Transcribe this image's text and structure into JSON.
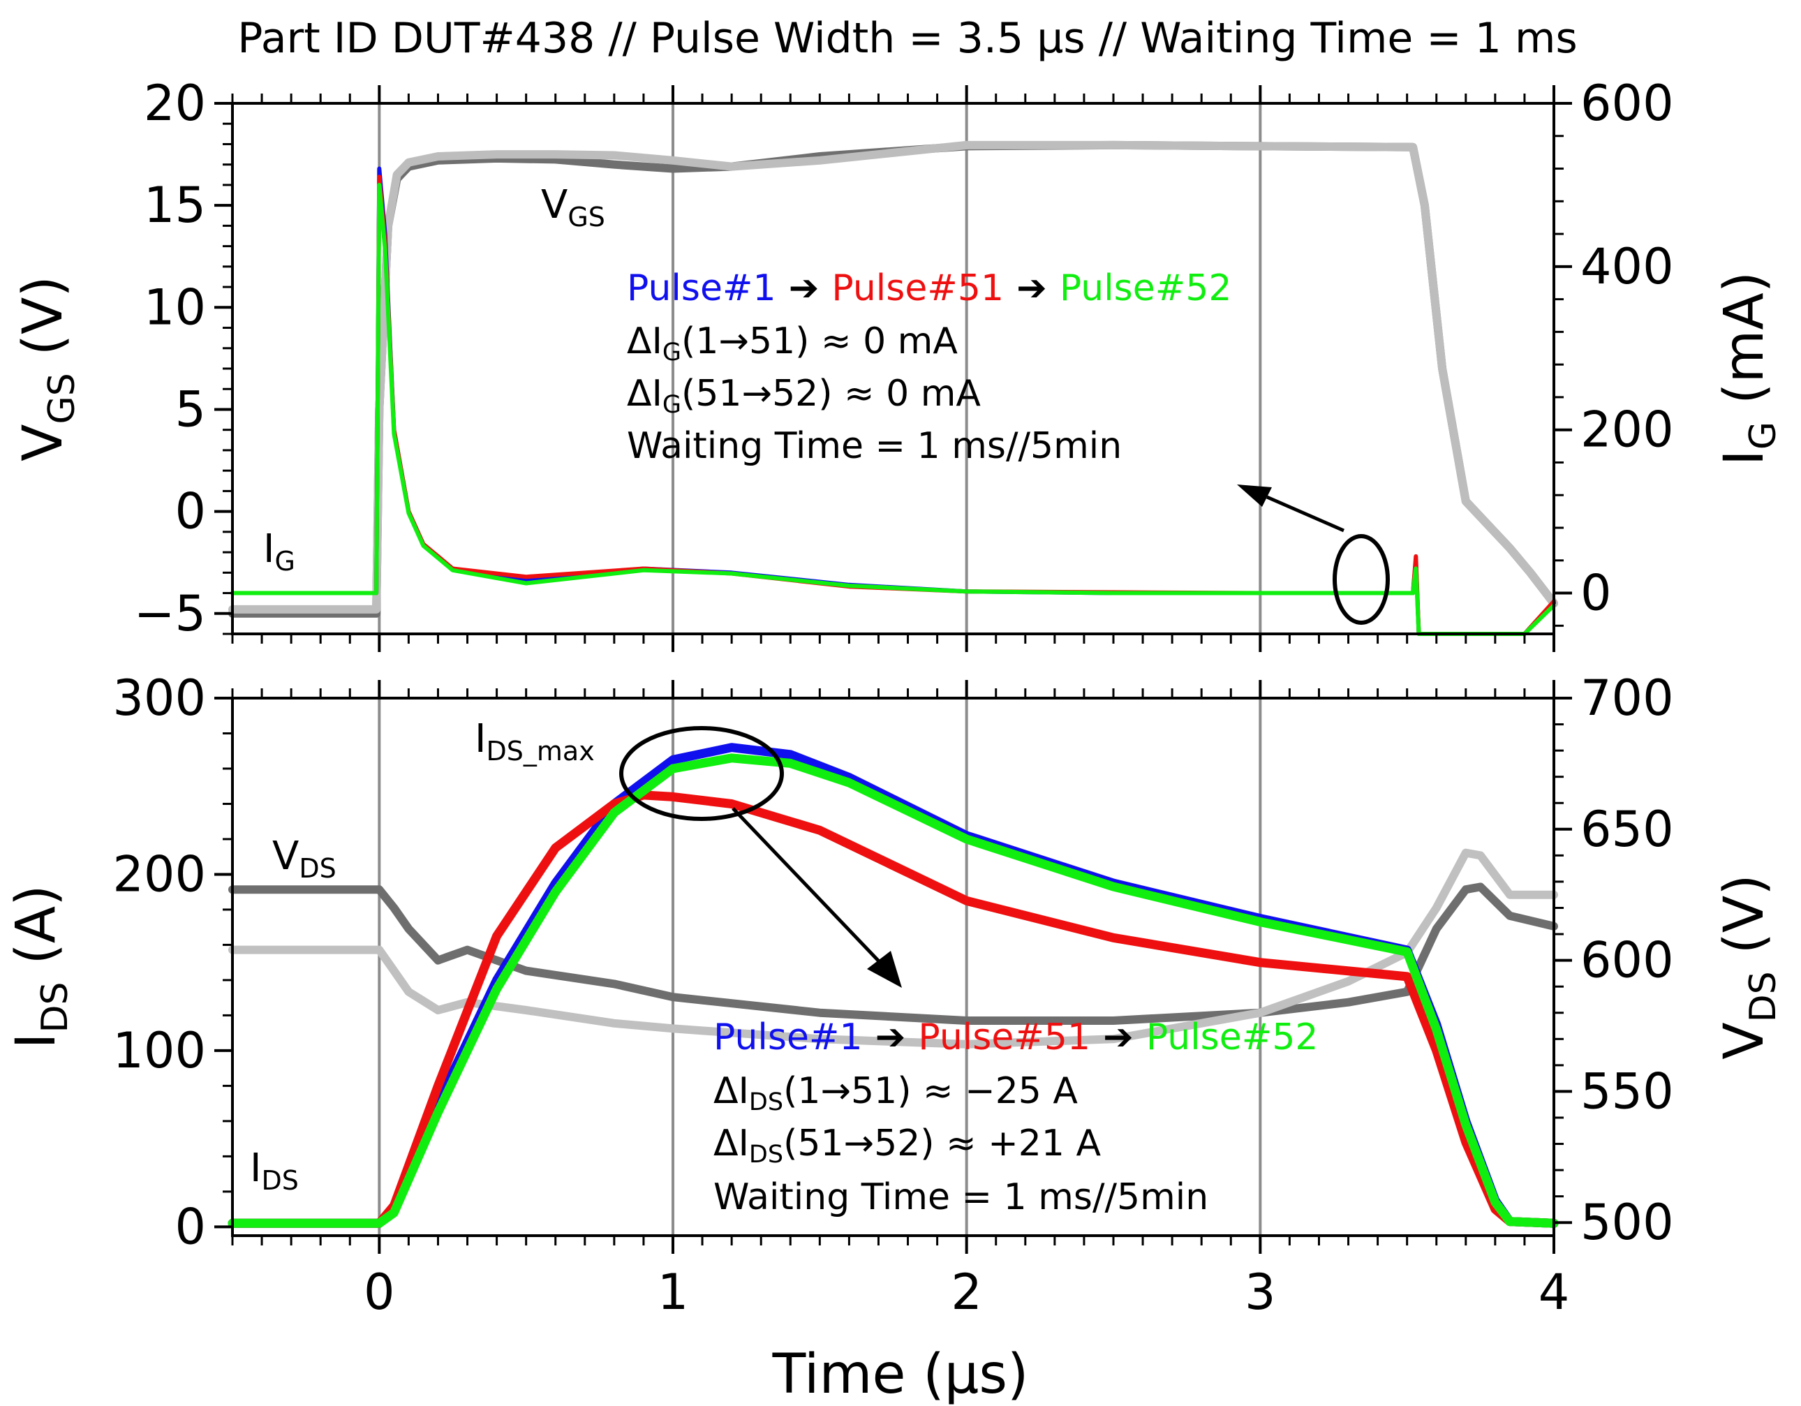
{
  "title": "Part ID DUT#438 // Pulse Width = 3.5 µs // Waiting Time = 1 ms",
  "colors": {
    "pulse1": "#1010ee",
    "pulse51": "#ee1010",
    "pulse52": "#10ee10",
    "vgs_a": "#6f6f6f",
    "vgs_b": "#bdbdbd",
    "vds_a": "#6e6e6e",
    "vds_b": "#c0c0c0",
    "grid": "#8c8c8c"
  },
  "chart_data": [
    {
      "type": "line",
      "panel": "top",
      "x_range": [
        -0.5,
        4
      ],
      "x_ticks": [
        "0",
        "1",
        "2",
        "3",
        "4"
      ],
      "y_left": {
        "label_main": "V",
        "label_sub": "GS",
        "label_unit": " (V)",
        "range": [
          -6,
          20
        ],
        "ticks": [
          "−5",
          "0",
          "5",
          "10",
          "15",
          "20"
        ]
      },
      "y_right": {
        "label_main": "I",
        "label_sub": "G",
        "label_unit": " (mA)",
        "range": [
          -50,
          600
        ],
        "ticks": [
          "0",
          "200",
          "400",
          "600"
        ]
      },
      "series": [
        {
          "name": "VGS (trace A)",
          "axis": "left",
          "color_key": "vgs_a",
          "x": [
            -0.5,
            -0.01,
            0.0,
            0.03,
            0.06,
            0.1,
            0.2,
            0.4,
            0.6,
            0.8,
            1.0,
            1.2,
            1.5,
            2.0,
            2.5,
            3.0,
            3.52,
            3.56,
            3.62,
            3.7,
            3.85,
            3.92,
            4.0
          ],
          "y": [
            -5,
            -5,
            5,
            14,
            16.3,
            16.9,
            17.2,
            17.3,
            17.25,
            17.0,
            16.8,
            16.9,
            17.4,
            17.9,
            17.95,
            17.9,
            17.85,
            15,
            7,
            0.5,
            -1.8,
            -3,
            -4.5
          ]
        },
        {
          "name": "VGS (trace B)",
          "axis": "left",
          "color_key": "vgs_b",
          "x": [
            -0.5,
            -0.01,
            0.0,
            0.03,
            0.06,
            0.1,
            0.2,
            0.4,
            0.6,
            0.8,
            1.0,
            1.2,
            1.5,
            2.0,
            2.5,
            3.0,
            3.52,
            3.56,
            3.62,
            3.7,
            3.85,
            3.92,
            4.0
          ],
          "y": [
            -4.8,
            -4.8,
            5,
            14,
            16.5,
            17.1,
            17.4,
            17.5,
            17.5,
            17.45,
            17.2,
            16.9,
            17.2,
            17.95,
            17.95,
            17.9,
            17.85,
            15,
            7,
            0.5,
            -1.8,
            -3,
            -4.5
          ]
        },
        {
          "name": "Pulse#1",
          "axis": "right",
          "color_key": "pulse1",
          "x": [
            -0.5,
            -0.01,
            0.0,
            0.02,
            0.05,
            0.1,
            0.15,
            0.25,
            0.5,
            0.9,
            1.2,
            1.6,
            2.0,
            2.5,
            3.0,
            3.52,
            3.53,
            3.54,
            3.9,
            4.0
          ],
          "y": [
            0,
            0,
            520,
            440,
            200,
            100,
            60,
            30,
            15,
            30,
            25,
            10,
            2,
            0,
            0,
            0,
            40,
            -50,
            -50,
            -12
          ]
        },
        {
          "name": "Pulse#51",
          "axis": "right",
          "color_key": "pulse51",
          "x": [
            -0.5,
            -0.01,
            0.0,
            0.02,
            0.05,
            0.1,
            0.15,
            0.25,
            0.5,
            0.9,
            1.2,
            1.6,
            2.0,
            2.5,
            3.0,
            3.52,
            3.53,
            3.54,
            3.9,
            4.0
          ],
          "y": [
            0,
            0,
            510,
            430,
            200,
            100,
            60,
            30,
            20,
            30,
            24,
            8,
            2,
            1,
            0,
            0,
            45,
            -50,
            -50,
            -10
          ]
        },
        {
          "name": "Pulse#52",
          "axis": "right",
          "color_key": "pulse52",
          "x": [
            -0.5,
            -0.01,
            0.0,
            0.02,
            0.05,
            0.1,
            0.15,
            0.25,
            0.5,
            0.9,
            1.2,
            1.6,
            2.0,
            2.5,
            3.0,
            3.52,
            3.53,
            3.54,
            3.9,
            4.0
          ],
          "y": [
            0,
            0,
            500,
            420,
            195,
            98,
            58,
            28,
            12,
            28,
            24,
            9,
            2,
            0,
            0,
            0,
            30,
            -50,
            -50,
            -15
          ]
        }
      ],
      "curve_labels": {
        "vgs_main": "V",
        "vgs_sub": "GS",
        "ig_main": "I",
        "ig_sub": "G"
      },
      "annotation": {
        "pulse1": "Pulse#1",
        "arrow1": " ➔ ",
        "pulse51": "Pulse#51",
        "arrow2": " ➔ ",
        "pulse52": "Pulse#52",
        "line1_main": "ΔI",
        "line1_sub": "G",
        "line1_rest": "(1→51) ≈ 0 mA",
        "line2_main": "ΔI",
        "line2_sub": "G",
        "line2_rest": "(51→52) ≈ 0 mA",
        "line3": "Waiting Time = 1 ms//5min"
      }
    },
    {
      "type": "line",
      "panel": "bottom",
      "x_range": [
        -0.5,
        4
      ],
      "x_label": "Time (µs)",
      "x_ticks": [
        "0",
        "1",
        "2",
        "3",
        "4"
      ],
      "y_left": {
        "label_main": "I",
        "label_sub": "DS",
        "label_unit": " (A)",
        "range": [
          -5,
          300
        ],
        "ticks": [
          "0",
          "100",
          "200",
          "300"
        ]
      },
      "y_right": {
        "label_main": "V",
        "label_sub": "DS",
        "label_unit": " (V)",
        "range": [
          495,
          700
        ],
        "ticks": [
          "500",
          "550",
          "600",
          "650",
          "700"
        ]
      },
      "series": [
        {
          "name": "VDS (trace A)",
          "axis": "right",
          "color_key": "vds_a",
          "x": [
            -0.5,
            0.0,
            0.05,
            0.1,
            0.2,
            0.3,
            0.5,
            0.8,
            1.0,
            1.5,
            2.0,
            2.5,
            3.0,
            3.3,
            3.5,
            3.6,
            3.7,
            3.75,
            3.85,
            4.0
          ],
          "y": [
            627,
            627,
            620,
            612,
            600,
            604,
            596,
            591,
            586,
            580,
            577,
            577,
            580,
            584,
            588,
            612,
            627,
            628,
            617,
            613
          ]
        },
        {
          "name": "VDS (trace B)",
          "axis": "right",
          "color_key": "vds_b",
          "x": [
            -0.5,
            0.0,
            0.05,
            0.1,
            0.2,
            0.3,
            0.5,
            0.8,
            1.0,
            1.5,
            2.0,
            2.5,
            3.0,
            3.3,
            3.5,
            3.6,
            3.7,
            3.75,
            3.85,
            4.0
          ],
          "y": [
            604,
            604,
            596,
            588,
            581,
            584,
            581,
            576,
            574,
            570,
            568,
            570,
            580,
            592,
            603,
            620,
            641,
            640,
            625,
            625
          ]
        },
        {
          "name": "Pulse#1",
          "axis": "left",
          "color_key": "pulse1",
          "x": [
            -0.5,
            0.0,
            0.05,
            0.2,
            0.4,
            0.6,
            0.8,
            1.0,
            1.2,
            1.4,
            1.6,
            2.0,
            2.5,
            3.0,
            3.5,
            3.6,
            3.7,
            3.8,
            3.85,
            4.0
          ],
          "y": [
            2,
            2,
            10,
            70,
            140,
            195,
            240,
            265,
            272,
            268,
            255,
            222,
            195,
            175,
            157,
            115,
            60,
            15,
            3,
            2
          ]
        },
        {
          "name": "Pulse#51",
          "axis": "left",
          "color_key": "pulse51",
          "x": [
            -0.5,
            0.0,
            0.05,
            0.2,
            0.4,
            0.6,
            0.8,
            0.9,
            1.0,
            1.2,
            1.5,
            2.0,
            2.5,
            3.0,
            3.5,
            3.6,
            3.7,
            3.8,
            3.85,
            4.0
          ],
          "y": [
            2,
            2,
            12,
            80,
            165,
            215,
            240,
            245,
            244,
            240,
            225,
            185,
            164,
            150,
            142,
            100,
            48,
            10,
            3,
            2
          ]
        },
        {
          "name": "Pulse#52",
          "axis": "left",
          "color_key": "pulse52",
          "x": [
            -0.5,
            0.0,
            0.05,
            0.2,
            0.4,
            0.6,
            0.8,
            1.0,
            1.2,
            1.4,
            1.6,
            2.0,
            2.5,
            3.0,
            3.5,
            3.6,
            3.7,
            3.8,
            3.85,
            4.0
          ],
          "y": [
            2,
            2,
            8,
            65,
            135,
            190,
            235,
            260,
            266,
            263,
            252,
            220,
            193,
            173,
            156,
            112,
            58,
            14,
            3,
            2
          ]
        }
      ],
      "curve_labels": {
        "vds_main": "V",
        "vds_sub": "DS",
        "ids_main": "I",
        "ids_sub": "DS",
        "idsmax_main": "I",
        "idsmax_sub": "DS_max"
      },
      "annotation": {
        "pulse1": "Pulse#1",
        "arrow1": " ➔ ",
        "pulse51": "Pulse#51",
        "arrow2": " ➔ ",
        "pulse52": "Pulse#52",
        "line1_main": "ΔI",
        "line1_sub": "DS",
        "line1_rest": "(1→51) ≈ −25 A",
        "line2_main": "ΔI",
        "line2_sub": "DS",
        "line2_rest": "(51→52) ≈ +21 A",
        "line3": "Waiting Time = 1 ms//5min"
      }
    }
  ]
}
